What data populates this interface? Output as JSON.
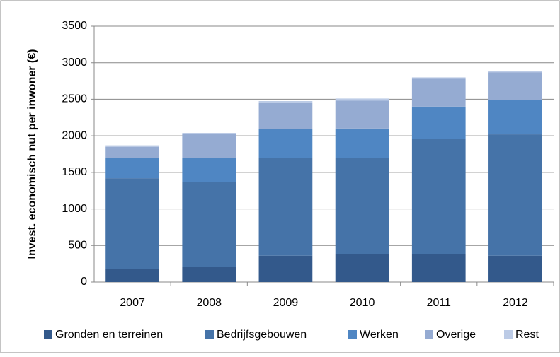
{
  "chart_data": {
    "type": "stacked-bar",
    "y_label": "Invest. economisch nut per inwoner (€)",
    "categories": [
      "2007",
      "2008",
      "2009",
      "2010",
      "2011",
      "2012"
    ],
    "series": [
      {
        "name": "Gronden en terreinen",
        "color": "#33598b",
        "values": [
          180,
          210,
          360,
          380,
          380,
          360
        ]
      },
      {
        "name": "Bedrijfsgebouwen",
        "color": "#4573a8",
        "values": [
          1240,
          1160,
          1340,
          1320,
          1580,
          1660
        ]
      },
      {
        "name": "Werken",
        "color": "#4f86c3",
        "values": [
          280,
          330,
          390,
          400,
          440,
          470
        ]
      },
      {
        "name": "Overige",
        "color": "#95abd2",
        "values": [
          150,
          330,
          360,
          380,
          380,
          380
        ]
      },
      {
        "name": "Rest",
        "color": "#bccbe6",
        "values": [
          20,
          10,
          25,
          30,
          20,
          20
        ]
      }
    ],
    "ylim": [
      0,
      3500
    ],
    "yticks": [
      0,
      500,
      1000,
      1500,
      2000,
      2500,
      3000,
      3500
    ],
    "grid": true
  }
}
